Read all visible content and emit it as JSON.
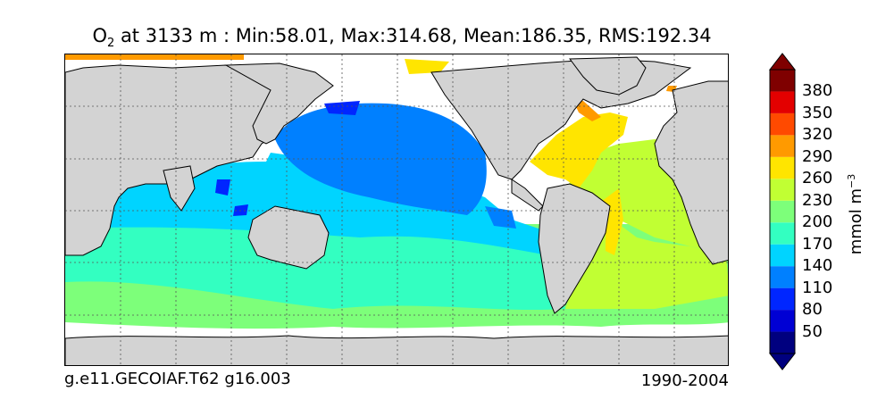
{
  "title": {
    "symbol": "O",
    "subscript": "2",
    "text": "at 3133 m : Min:58.01, Max:314.68, Mean:186.35, RMS:192.34"
  },
  "footer": {
    "case_name": "g.e11.GECOIAF.T62 g16.003",
    "years": "1990-2004"
  },
  "colorbar": {
    "label": "mmol m",
    "label_exponent": "−3",
    "ticks": [
      "50",
      "80",
      "110",
      "140",
      "170",
      "200",
      "230",
      "260",
      "290",
      "320",
      "350",
      "380"
    ],
    "colors": [
      "#00007f",
      "#0000d4",
      "#0026ff",
      "#0080ff",
      "#00d4ff",
      "#33ffc1",
      "#7dff7a",
      "#c1ff33",
      "#ffe500",
      "#ff9a00",
      "#ff4a00",
      "#e30000",
      "#7f0000"
    ]
  },
  "map": {
    "land_color": "#d3d3d3",
    "grid": true,
    "regions": {
      "north_pacific": "#0080ff",
      "tropics": "#00d4ff",
      "subtropics": "#33ffc1",
      "southern_ocean": "#7dff7a",
      "south_atlantic": "#c1ff33",
      "north_atlantic": "#ffe500",
      "labrador_sea": "#ff9a00",
      "deep_low": "#0026ff"
    }
  }
}
